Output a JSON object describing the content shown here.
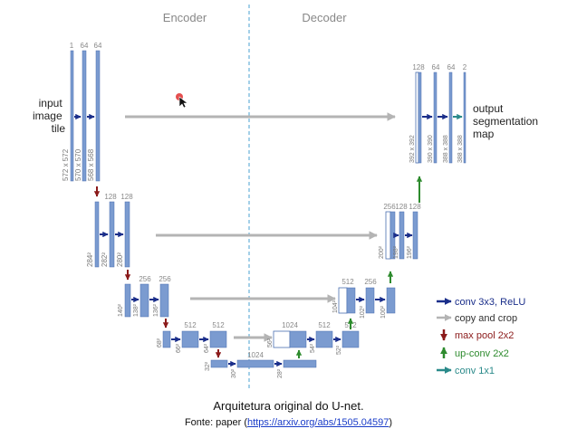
{
  "headings": {
    "encoder": "Encoder",
    "decoder": "Decoder"
  },
  "labels": {
    "input": [
      "input",
      "image",
      "tile"
    ],
    "output": [
      "output",
      "segmentation",
      "map"
    ]
  },
  "channels": {
    "l1": [
      "1",
      "64",
      "64"
    ],
    "l2": [
      "128",
      "128"
    ],
    "l3": [
      "256",
      "256"
    ],
    "l4": [
      "512",
      "512"
    ],
    "l5": [
      "1024"
    ],
    "d4": [
      "1024",
      "512",
      "512"
    ],
    "d3": [
      "512",
      "256",
      "256"
    ],
    "d2": [
      "256",
      "128",
      "128"
    ],
    "d1": [
      "128",
      "64",
      "64",
      "2"
    ]
  },
  "sizes": {
    "l1": [
      "572 x 572",
      "570 x 570",
      "568 x 568"
    ],
    "l2": [
      "284²",
      "282²",
      "280²"
    ],
    "l3": [
      "140²",
      "138²",
      "136²"
    ],
    "l4": [
      "68²",
      "66²",
      "64²"
    ],
    "l5": [
      "32²",
      "30²",
      "28²"
    ],
    "d4": [
      "56²",
      "54²",
      "52²"
    ],
    "d3": [
      "104²",
      "102²",
      "100²"
    ],
    "d2": [
      "200²",
      "198²",
      "196²"
    ],
    "d1": [
      "392 x 392",
      "390 x 390",
      "388 x 388",
      "388 x 388"
    ]
  },
  "legend": {
    "conv": "conv 3x3, ReLU",
    "copy": "copy and crop",
    "pool": "max pool 2x2",
    "upconv": "up-conv 2x2",
    "conv1x1": "conv 1x1"
  },
  "colors": {
    "block": "#7b9bd0",
    "block_edge": "#4a6fb0",
    "conv_arrow": "#1a2e8a",
    "copy_arrow": "#b4b4b4",
    "pool_arrow": "#8b1a1a",
    "upconv_arrow": "#2e8b2e",
    "conv1x1_arrow": "#2a8a8a",
    "divider": "#4aa0d0",
    "cursor_dot": "#e03030"
  },
  "caption": {
    "title": "Arquitetura original do U-net.",
    "source_prefix": "Fonte: paper (",
    "source_link": "https://arxiv.org/abs/1505.04597",
    "source_suffix": ")"
  }
}
